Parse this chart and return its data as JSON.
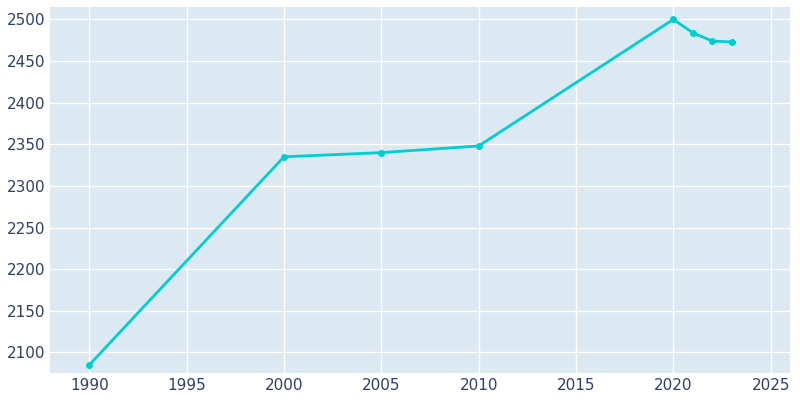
{
  "years": [
    1990,
    2000,
    2005,
    2010,
    2020,
    2021,
    2022,
    2023
  ],
  "population": [
    2085,
    2335,
    2340,
    2348,
    2500,
    2484,
    2474,
    2473
  ],
  "line_color": "#00CED1",
  "background_color": "#ffffff",
  "plot_bg_color": "#dce8f2",
  "line_width": 2.0,
  "marker": "o",
  "marker_size": 4,
  "xlim": [
    1988,
    2026
  ],
  "ylim": [
    2075,
    2515
  ],
  "xticks": [
    1990,
    1995,
    2000,
    2005,
    2010,
    2015,
    2020,
    2025
  ],
  "yticks": [
    2100,
    2150,
    2200,
    2250,
    2300,
    2350,
    2400,
    2450,
    2500
  ],
  "tick_label_color": "#2e3f6e",
  "tick_fontsize": 11,
  "grid_color": "#ffffff",
  "grid_linewidth": 1.0
}
